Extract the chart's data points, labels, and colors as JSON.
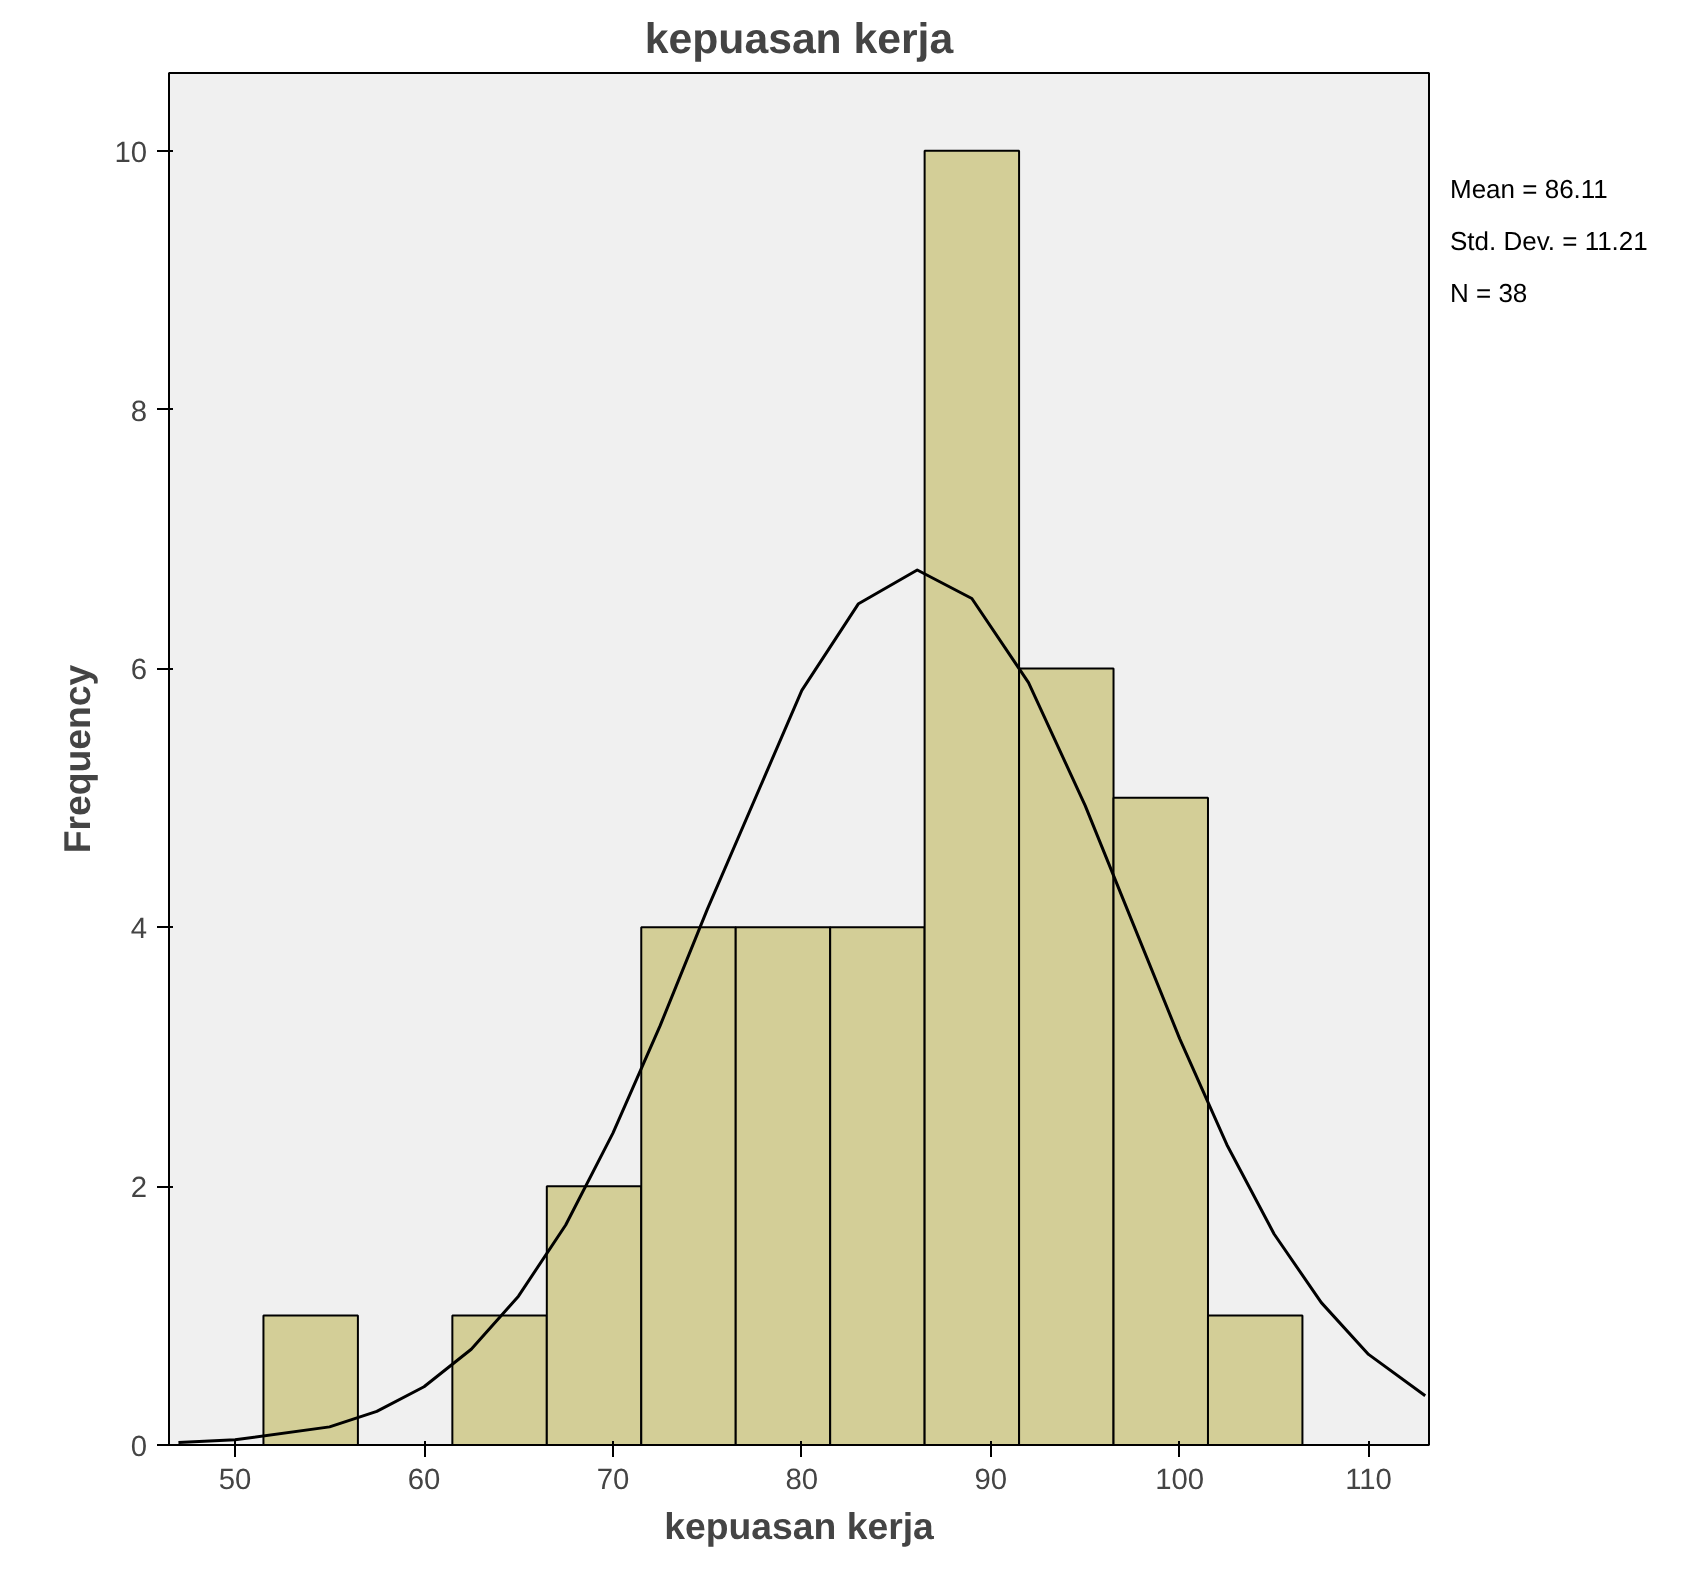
{
  "chart_data": {
    "type": "histogram",
    "title": "kepuasan kerja",
    "xlabel": "kepuasan kerja",
    "ylabel": "Frequency",
    "bins": [
      51.5,
      56.5,
      61.5,
      66.5,
      71.5,
      76.5,
      81.5,
      86.5,
      91.5,
      96.5,
      101.5,
      106.5
    ],
    "values": [
      1,
      0,
      1,
      2,
      4,
      4,
      4,
      10,
      6,
      5,
      1
    ],
    "color": "#d3ce97",
    "series": [
      {
        "type": "line",
        "color": "#000000",
        "x": [
          47,
          50,
          55,
          57.5,
          60,
          62.5,
          65,
          67.5,
          70,
          72.5,
          75,
          80,
          83,
          86.11,
          89,
          92,
          95,
          97.5,
          100,
          102.5,
          105,
          107.5,
          110,
          113
        ],
        "values": [
          0.02,
          0.04,
          0.14,
          0.26,
          0.45,
          0.74,
          1.15,
          1.7,
          2.41,
          3.24,
          4.14,
          5.83,
          6.5,
          6.76,
          6.54,
          5.89,
          4.94,
          4.04,
          3.14,
          2.32,
          1.63,
          1.1,
          0.7,
          0.38
        ]
      }
    ],
    "xlim": [
      46.5,
      113.2
    ],
    "xticks": [
      50,
      60,
      70,
      80,
      90,
      100,
      110
    ],
    "ylim": [
      0,
      10.6
    ],
    "yticks": [
      0,
      2,
      4,
      6,
      8,
      10
    ],
    "grid": false,
    "annotations": [
      "Mean = 86.11",
      "Std. Dev. = 11.21",
      "N = 38"
    ]
  }
}
